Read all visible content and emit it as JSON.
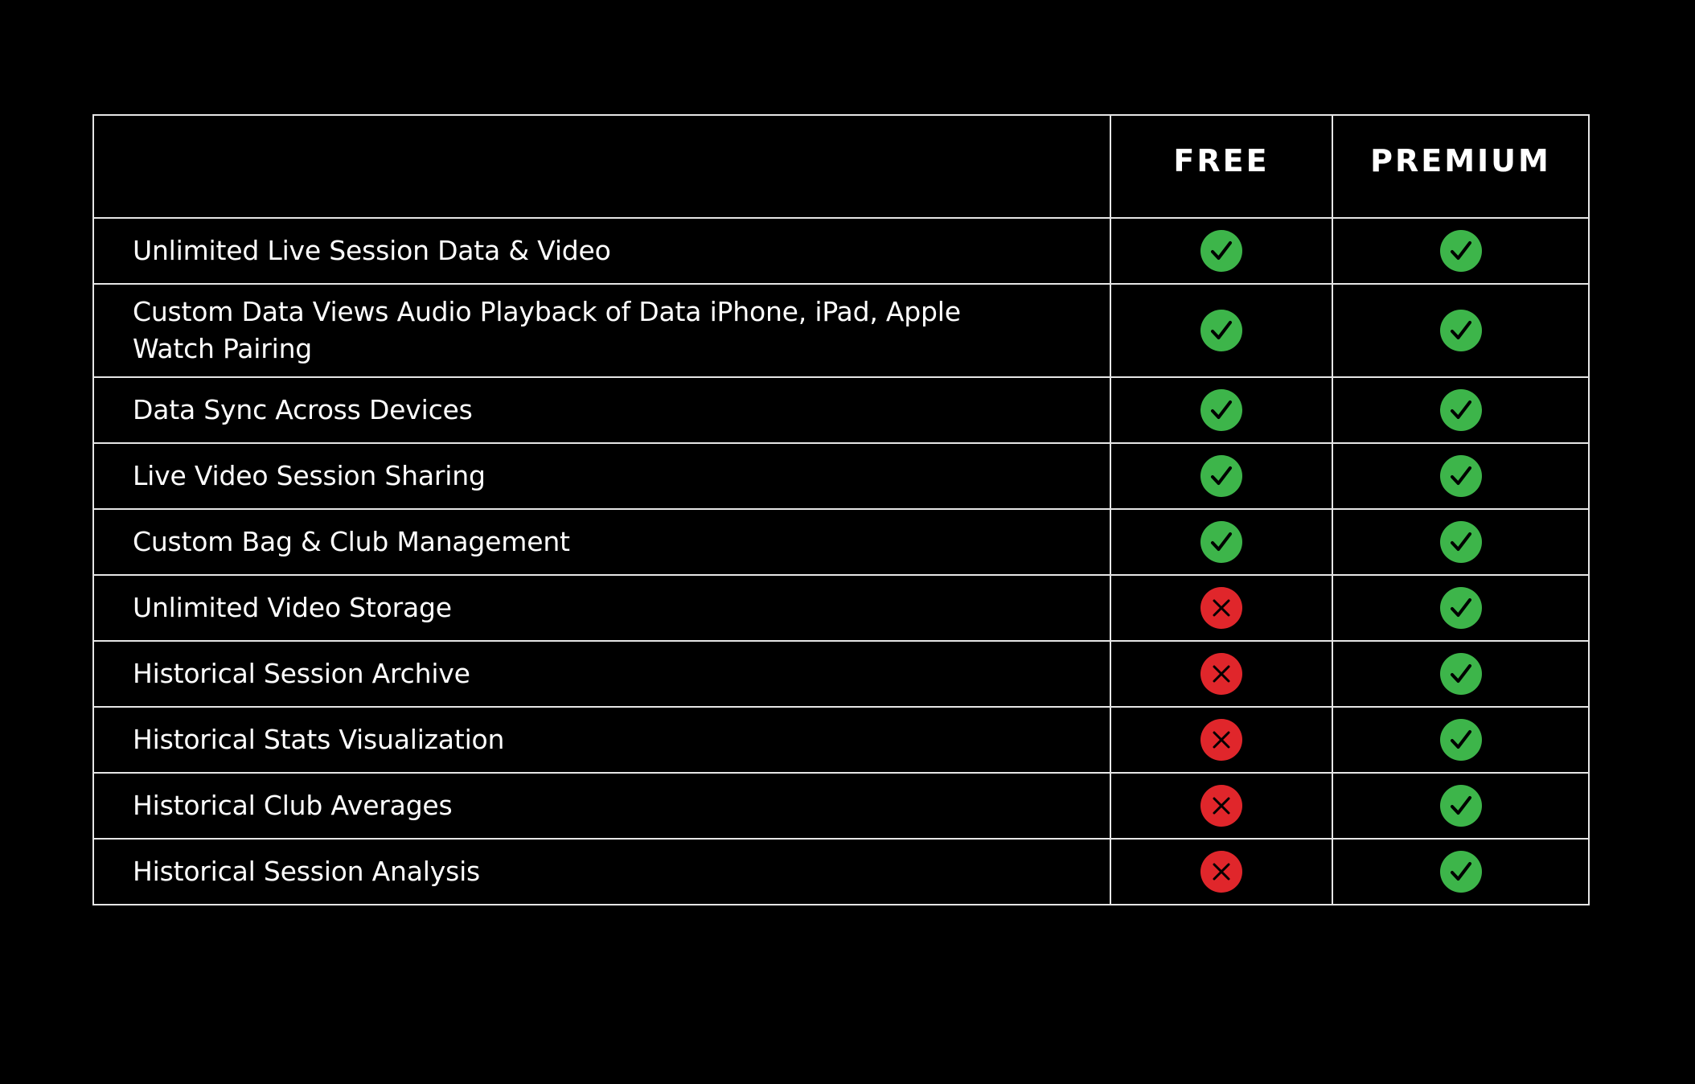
{
  "table": {
    "columns": {
      "feature": "",
      "free": "FREE",
      "premium": "PREMIUM"
    },
    "rows": [
      {
        "feature": "Unlimited Live Session Data & Video",
        "free": "check-icon",
        "premium": "check-icon"
      },
      {
        "feature": "Custom Data Views Audio Playback of Data iPhone, iPad, Apple Watch Pairing",
        "free": "check-icon",
        "premium": "check-icon"
      },
      {
        "feature": "Data Sync Across Devices",
        "free": "check-icon",
        "premium": "check-icon"
      },
      {
        "feature": "Live Video Session Sharing",
        "free": "check-icon",
        "premium": "check-icon"
      },
      {
        "feature": "Custom Bag & Club Management",
        "free": "check-icon",
        "premium": "check-icon"
      },
      {
        "feature": "Unlimited Video Storage",
        "free": "cross-icon",
        "premium": "check-icon"
      },
      {
        "feature": "Historical Session Archive",
        "free": "cross-icon",
        "premium": "check-icon"
      },
      {
        "feature": "Historical Stats Visualization",
        "free": "cross-icon",
        "premium": "check-icon"
      },
      {
        "feature": "Historical Club Averages",
        "free": "cross-icon",
        "premium": "check-icon"
      },
      {
        "feature": "Historical Session Analysis",
        "free": "cross-icon",
        "premium": "check-icon"
      }
    ]
  },
  "colors": {
    "background": "#000000",
    "border": "#e6e6e6",
    "text": "#ffffff",
    "check": "#3db54a",
    "cross": "#e0262b",
    "glyph": "#000000"
  }
}
